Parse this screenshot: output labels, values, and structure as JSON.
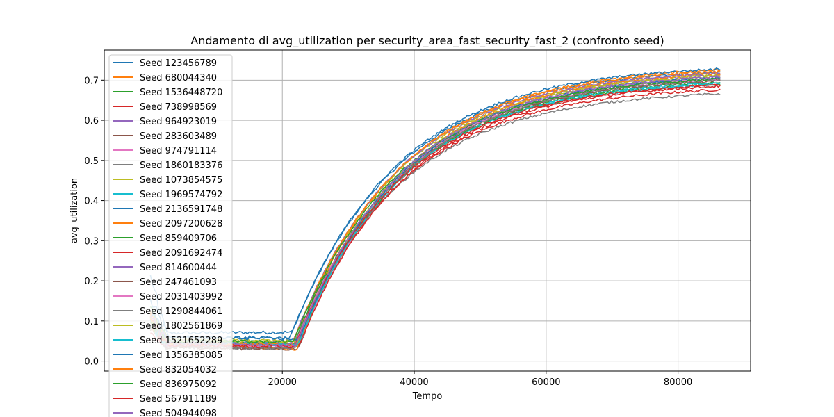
{
  "chart_data": {
    "type": "line",
    "title": "Andamento di avg_utilization per security_area_fast_security_fast_2 (confronto seed)",
    "xlabel": "Tempo",
    "ylabel": "avg_utilization",
    "xlim": [
      -7000,
      91000
    ],
    "ylim": [
      -0.025,
      0.775
    ],
    "xticks": [
      20000,
      40000,
      60000,
      80000
    ],
    "yticks": [
      0.0,
      0.1,
      0.2,
      0.3,
      0.4,
      0.5,
      0.6,
      0.7
    ],
    "grid": true,
    "legend_position": "top-left",
    "colors": [
      "#1f77b4",
      "#ff7f0e",
      "#2ca02c",
      "#d62728",
      "#9467bd",
      "#8c564b",
      "#e377c2",
      "#7f7f7f",
      "#bcbd22",
      "#17becf"
    ],
    "x_range": [
      0,
      86400
    ],
    "series": [
      {
        "name": "Seed 123456789",
        "values": [
          0.15,
          0.07,
          0.072,
          0.72
        ]
      },
      {
        "name": "Seed 680044340",
        "values": [
          0.12,
          0.04,
          0.035,
          0.726
        ]
      },
      {
        "name": "Seed 1536448720",
        "values": [
          0.13,
          0.05,
          0.048,
          0.69
        ]
      },
      {
        "name": "Seed 738998569",
        "values": [
          0.09,
          0.038,
          0.035,
          0.676
        ]
      },
      {
        "name": "Seed 964923019",
        "values": [
          0.1,
          0.045,
          0.042,
          0.712
        ]
      },
      {
        "name": "Seed 283603489",
        "values": [
          0.08,
          0.035,
          0.03,
          0.7
        ]
      },
      {
        "name": "Seed 974791114",
        "values": [
          0.11,
          0.042,
          0.04,
          0.705
        ]
      },
      {
        "name": "Seed 1860183376",
        "values": [
          0.12,
          0.035,
          0.032,
          0.666
        ]
      },
      {
        "name": "Seed 1073854575",
        "values": [
          0.1,
          0.055,
          0.05,
          0.714
        ]
      },
      {
        "name": "Seed 1969574792",
        "values": [
          0.09,
          0.04,
          0.038,
          0.69
        ]
      },
      {
        "name": "Seed 2136591748",
        "values": [
          0.21,
          0.06,
          0.058,
          0.728
        ]
      },
      {
        "name": "Seed 2097200628",
        "values": [
          0.13,
          0.045,
          0.03,
          0.716
        ]
      },
      {
        "name": "Seed 859409706",
        "values": [
          0.11,
          0.045,
          0.042,
          0.695
        ]
      },
      {
        "name": "Seed 2091692474",
        "values": [
          0.1,
          0.04,
          0.04,
          0.685
        ]
      },
      {
        "name": "Seed 814600444",
        "values": [
          0.09,
          0.05,
          0.045,
          0.718
        ]
      },
      {
        "name": "Seed 247461093",
        "values": [
          0.08,
          0.035,
          0.033,
          0.698
        ]
      },
      {
        "name": "Seed 2031403992",
        "values": [
          0.12,
          0.04,
          0.038,
          0.702
        ]
      },
      {
        "name": "Seed 1290844061",
        "values": [
          0.1,
          0.035,
          0.032,
          0.7
        ]
      },
      {
        "name": "Seed 1802561869",
        "values": [
          0.11,
          0.05,
          0.046,
          0.71
        ]
      },
      {
        "name": "Seed 1521652289",
        "values": [
          0.09,
          0.045,
          0.042,
          0.693
        ]
      },
      {
        "name": "Seed 1356385085",
        "values": [
          0.12,
          0.06,
          0.055,
          0.706
        ]
      },
      {
        "name": "Seed 832054032",
        "values": [
          0.1,
          0.045,
          0.04,
          0.722
        ]
      },
      {
        "name": "Seed 836975092",
        "values": [
          0.09,
          0.05,
          0.048,
          0.703
        ]
      },
      {
        "name": "Seed 567911189",
        "values": [
          0.08,
          0.04,
          0.036,
          0.688
        ]
      },
      {
        "name": "Seed 504944098",
        "values": [
          0.11,
          0.045,
          0.04,
          0.708
        ]
      }
    ]
  }
}
